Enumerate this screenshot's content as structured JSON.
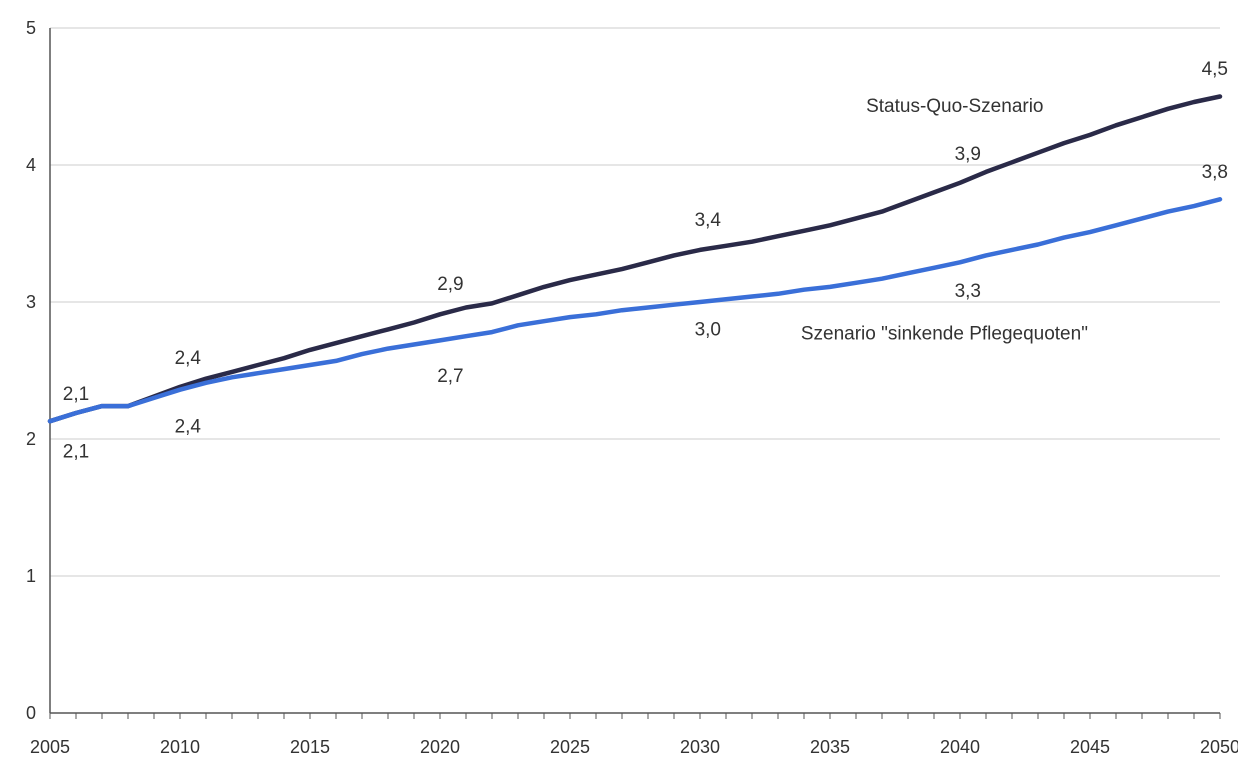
{
  "chart_data": {
    "type": "line",
    "title": "",
    "xlabel": "",
    "ylabel": "",
    "xlim": [
      2005,
      2050
    ],
    "ylim": [
      0,
      5
    ],
    "x_ticks": [
      "2005",
      "2010",
      "2015",
      "2020",
      "2025",
      "2030",
      "2035",
      "2040",
      "2045",
      "2050"
    ],
    "y_ticks": [
      "0",
      "1",
      "2",
      "3",
      "4",
      "5"
    ],
    "grid": "horizontal",
    "series": [
      {
        "name": "Status-Quo-Szenario",
        "color": "#2a2a48",
        "x": [
          2005,
          2006,
          2007,
          2008,
          2009,
          2010,
          2011,
          2012,
          2013,
          2014,
          2015,
          2016,
          2017,
          2018,
          2019,
          2020,
          2021,
          2022,
          2023,
          2024,
          2025,
          2026,
          2027,
          2028,
          2029,
          2030,
          2031,
          2032,
          2033,
          2034,
          2035,
          2036,
          2037,
          2038,
          2039,
          2040,
          2041,
          2042,
          2043,
          2044,
          2045,
          2046,
          2047,
          2048,
          2049,
          2050
        ],
        "values": [
          2.13,
          2.19,
          2.24,
          2.24,
          2.31,
          2.38,
          2.44,
          2.49,
          2.54,
          2.59,
          2.65,
          2.7,
          2.75,
          2.8,
          2.85,
          2.91,
          2.96,
          2.99,
          3.05,
          3.11,
          3.16,
          3.2,
          3.24,
          3.29,
          3.34,
          3.38,
          3.41,
          3.44,
          3.48,
          3.52,
          3.56,
          3.61,
          3.66,
          3.73,
          3.8,
          3.87,
          3.95,
          4.02,
          4.09,
          4.16,
          4.22,
          4.29,
          4.35,
          4.41,
          4.46,
          4.5
        ]
      },
      {
        "name": "Szenario \"sinkende Pflegequoten\"",
        "color": "#3a6fd8",
        "x": [
          2005,
          2006,
          2007,
          2008,
          2009,
          2010,
          2011,
          2012,
          2013,
          2014,
          2015,
          2016,
          2017,
          2018,
          2019,
          2020,
          2021,
          2022,
          2023,
          2024,
          2025,
          2026,
          2027,
          2028,
          2029,
          2030,
          2031,
          2032,
          2033,
          2034,
          2035,
          2036,
          2037,
          2038,
          2039,
          2040,
          2041,
          2042,
          2043,
          2044,
          2045,
          2046,
          2047,
          2048,
          2049,
          2050
        ],
        "values": [
          2.13,
          2.19,
          2.24,
          2.24,
          2.3,
          2.36,
          2.41,
          2.45,
          2.48,
          2.51,
          2.54,
          2.57,
          2.62,
          2.66,
          2.69,
          2.72,
          2.75,
          2.78,
          2.83,
          2.86,
          2.89,
          2.91,
          2.94,
          2.96,
          2.98,
          3.0,
          3.02,
          3.04,
          3.06,
          3.09,
          3.11,
          3.14,
          3.17,
          3.21,
          3.25,
          3.29,
          3.34,
          3.38,
          3.42,
          3.47,
          3.51,
          3.56,
          3.61,
          3.66,
          3.7,
          3.75
        ]
      }
    ],
    "annotations": [
      {
        "text": "2,1",
        "x": 2006,
        "y": 2.33
      },
      {
        "text": "2,1",
        "x": 2006,
        "y": 1.91
      },
      {
        "text": "2,4",
        "x": 2010.3,
        "y": 2.59
      },
      {
        "text": "2,4",
        "x": 2010.3,
        "y": 2.09
      },
      {
        "text": "2,9",
        "x": 2020.4,
        "y": 3.13
      },
      {
        "text": "2,7",
        "x": 2020.4,
        "y": 2.46
      },
      {
        "text": "3,4",
        "x": 2030.3,
        "y": 3.6
      },
      {
        "text": "3,0",
        "x": 2030.3,
        "y": 2.8
      },
      {
        "text": "3,9",
        "x": 2040.3,
        "y": 4.08
      },
      {
        "text": "3,3",
        "x": 2040.3,
        "y": 3.08
      },
      {
        "text": "4,5",
        "x": 2049.8,
        "y": 4.7
      },
      {
        "text": "3,8",
        "x": 2049.8,
        "y": 3.95
      }
    ],
    "series_labels": [
      {
        "text": "Status-Quo-Szenario",
        "x": 2039.8,
        "y": 4.43
      },
      {
        "text": "Szenario \"sinkende Pflegequoten\"",
        "x": 2039.4,
        "y": 2.77
      }
    ]
  }
}
